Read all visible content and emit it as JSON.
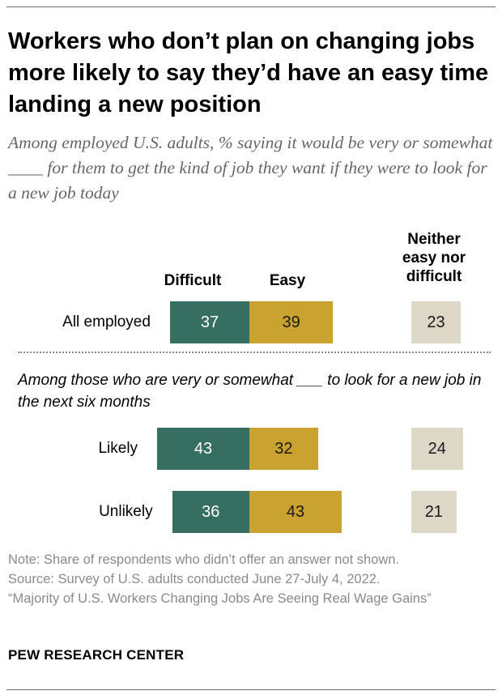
{
  "title": "Workers who don’t plan on changing jobs more likely to say they’d have an easy time landing a new position",
  "subtitle": "Among employed U.S. adults, % saying it would be very or somewhat ____ for them to get the kind of job they want if they were to look for a new job today",
  "group_label": "Among those who are very or somewhat ___ to look for a new job in the next six months",
  "notes": {
    "note": "Note: Share of respondents who didn’t offer an answer not shown.",
    "source": "Source: Survey of U.S. adults conducted June 27-July 4, 2022.",
    "report": "“Majority of U.S. Workers Changing Jobs Are Seeing Real Wage Gains”"
  },
  "footer": "PEW RESEARCH CENTER",
  "colors": {
    "difficult": "#366e5f",
    "easy": "#c9a22f",
    "neither": "#dcd7c6"
  },
  "chart_data": {
    "type": "bar",
    "orientation": "horizontal-diverging",
    "categories": [
      "All employed",
      "Likely",
      "Unlikely"
    ],
    "series": [
      {
        "name": "Difficult",
        "values": [
          37,
          43,
          36
        ]
      },
      {
        "name": "Easy",
        "values": [
          39,
          32,
          43
        ]
      },
      {
        "name": "Neither easy nor difficult",
        "values": [
          23,
          24,
          21
        ]
      }
    ],
    "column_headers": {
      "difficult": "Difficult",
      "easy": "Easy",
      "neither": [
        "Neither",
        "easy nor",
        "difficult"
      ]
    }
  }
}
